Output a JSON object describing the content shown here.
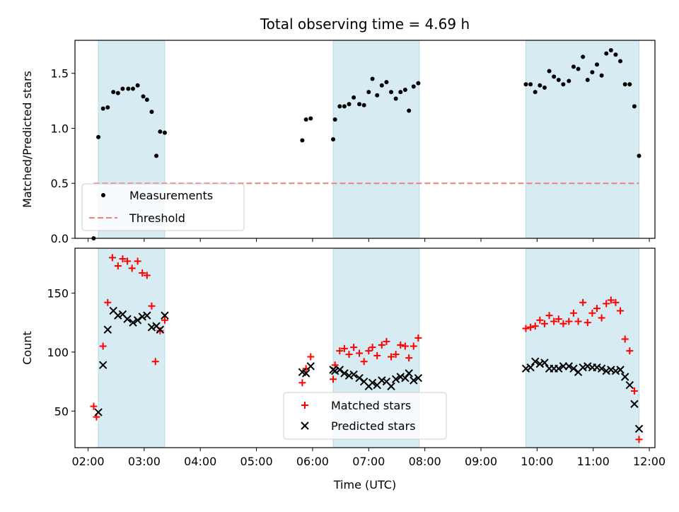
{
  "title": "Total observing time = 4.69 h",
  "chart_data": [
    {
      "type": "scatter",
      "panel": "top",
      "ylabel": "Matched/Predicted stars",
      "xlabel": "",
      "xlim": [
        "02:00",
        "12:00"
      ],
      "ylim": [
        0,
        1.8
      ],
      "yticks": [
        0.0,
        0.5,
        1.0,
        1.5
      ],
      "ytick_labels": [
        "0.0",
        "0.5",
        "1.0",
        "1.5"
      ],
      "legend_position": "lower-left",
      "shaded_intervals": [
        [
          "02:11",
          "03:22"
        ],
        [
          "06:22",
          "07:54"
        ],
        [
          "09:48",
          "11:49"
        ]
      ],
      "shade_color": "#add8e6",
      "series": [
        {
          "name": "Measurements",
          "marker": "dot",
          "color": "#000000",
          "points": [
            [
              "02:06",
              0.0
            ],
            [
              "02:11",
              0.92
            ],
            [
              "02:16",
              1.18
            ],
            [
              "02:21",
              1.19
            ],
            [
              "02:27",
              1.33
            ],
            [
              "02:32",
              1.32
            ],
            [
              "02:37",
              1.36
            ],
            [
              "02:43",
              1.36
            ],
            [
              "02:48",
              1.36
            ],
            [
              "02:53",
              1.39
            ],
            [
              "02:59",
              1.29
            ],
            [
              "03:03",
              1.26
            ],
            [
              "03:08",
              1.15
            ],
            [
              "03:13",
              0.75
            ],
            [
              "03:17",
              0.97
            ],
            [
              "03:22",
              0.96
            ],
            [
              "05:49",
              0.89
            ],
            [
              "05:53",
              1.08
            ],
            [
              "05:58",
              1.09
            ],
            [
              "06:22",
              0.9
            ],
            [
              "06:24",
              1.08
            ],
            [
              "06:29",
              1.2
            ],
            [
              "06:34",
              1.2
            ],
            [
              "06:39",
              1.22
            ],
            [
              "06:44",
              1.28
            ],
            [
              "06:50",
              1.22
            ],
            [
              "06:55",
              1.21
            ],
            [
              "07:00",
              1.33
            ],
            [
              "07:04",
              1.45
            ],
            [
              "07:09",
              1.3
            ],
            [
              "07:14",
              1.39
            ],
            [
              "07:19",
              1.42
            ],
            [
              "07:24",
              1.33
            ],
            [
              "07:29",
              1.27
            ],
            [
              "07:34",
              1.33
            ],
            [
              "07:39",
              1.35
            ],
            [
              "07:43",
              1.16
            ],
            [
              "07:48",
              1.38
            ],
            [
              "07:53",
              1.41
            ],
            [
              "09:48",
              1.4
            ],
            [
              "09:53",
              1.4
            ],
            [
              "09:58",
              1.33
            ],
            [
              "10:03",
              1.39
            ],
            [
              "10:08",
              1.37
            ],
            [
              "10:13",
              1.52
            ],
            [
              "10:18",
              1.47
            ],
            [
              "10:23",
              1.44
            ],
            [
              "10:28",
              1.4
            ],
            [
              "10:34",
              1.43
            ],
            [
              "10:39",
              1.56
            ],
            [
              "10:44",
              1.54
            ],
            [
              "10:49",
              1.65
            ],
            [
              "10:54",
              1.44
            ],
            [
              "10:59",
              1.51
            ],
            [
              "11:04",
              1.58
            ],
            [
              "11:09",
              1.48
            ],
            [
              "11:14",
              1.68
            ],
            [
              "11:19",
              1.71
            ],
            [
              "11:24",
              1.67
            ],
            [
              "11:29",
              1.61
            ],
            [
              "11:34",
              1.4
            ],
            [
              "11:39",
              1.4
            ],
            [
              "11:44",
              1.2
            ],
            [
              "11:49",
              0.75
            ]
          ]
        },
        {
          "name": "Threshold",
          "marker": "dashed-line",
          "color": "#f08080",
          "points": [
            [
              "02:06",
              0.5
            ],
            [
              "11:49",
              0.5
            ]
          ]
        }
      ]
    },
    {
      "type": "scatter",
      "panel": "bottom",
      "ylabel": "Count",
      "xlabel": "Time (UTC)",
      "xlim": [
        "01:46",
        "12:06"
      ],
      "ylim": [
        19,
        188
      ],
      "yticks": [
        50,
        100,
        150
      ],
      "ytick_labels": [
        "50",
        "100",
        "150"
      ],
      "xtick_labels": [
        "02:00",
        "03:00",
        "04:00",
        "05:00",
        "06:00",
        "07:00",
        "08:00",
        "09:00",
        "10:00",
        "11:00",
        "12:00"
      ],
      "legend_position": "lower-center",
      "shaded_intervals": [
        [
          "02:11",
          "03:22"
        ],
        [
          "06:22",
          "07:54"
        ],
        [
          "09:48",
          "11:49"
        ]
      ],
      "shade_color": "#add8e6",
      "series": [
        {
          "name": "Matched stars",
          "marker": "plus",
          "color": "#ff0000",
          "points": [
            [
              "02:06",
              54
            ],
            [
              "02:09",
              45
            ],
            [
              "02:16",
              105
            ],
            [
              "02:21",
              142
            ],
            [
              "02:26",
              180
            ],
            [
              "02:32",
              173
            ],
            [
              "02:37",
              179
            ],
            [
              "02:42",
              177
            ],
            [
              "02:47",
              171
            ],
            [
              "02:53",
              177
            ],
            [
              "02:58",
              167
            ],
            [
              "03:03",
              165
            ],
            [
              "03:08",
              139
            ],
            [
              "03:12",
              92
            ],
            [
              "03:17",
              118
            ],
            [
              "03:22",
              127
            ],
            [
              "05:49",
              74
            ],
            [
              "05:53",
              86
            ],
            [
              "05:58",
              96
            ],
            [
              "06:22",
              77
            ],
            [
              "06:24",
              89
            ],
            [
              "06:29",
              101
            ],
            [
              "06:34",
              103
            ],
            [
              "06:39",
              98
            ],
            [
              "06:44",
              104
            ],
            [
              "06:50",
              99
            ],
            [
              "06:55",
              92
            ],
            [
              "07:00",
              101
            ],
            [
              "07:04",
              104
            ],
            [
              "07:09",
              97
            ],
            [
              "07:14",
              106
            ],
            [
              "07:19",
              109
            ],
            [
              "07:24",
              96
            ],
            [
              "07:29",
              98
            ],
            [
              "07:34",
              106
            ],
            [
              "07:39",
              105
            ],
            [
              "07:43",
              95
            ],
            [
              "07:48",
              105
            ],
            [
              "07:53",
              112
            ],
            [
              "09:48",
              120
            ],
            [
              "09:53",
              121
            ],
            [
              "09:58",
              122
            ],
            [
              "10:03",
              127
            ],
            [
              "10:08",
              124
            ],
            [
              "10:13",
              131
            ],
            [
              "10:18",
              126
            ],
            [
              "10:23",
              128
            ],
            [
              "10:28",
              124
            ],
            [
              "10:34",
              126
            ],
            [
              "10:39",
              133
            ],
            [
              "10:44",
              126
            ],
            [
              "10:49",
              142
            ],
            [
              "10:54",
              125
            ],
            [
              "10:59",
              133
            ],
            [
              "11:04",
              137
            ],
            [
              "11:09",
              129
            ],
            [
              "11:14",
              141
            ],
            [
              "11:19",
              144
            ],
            [
              "11:24",
              142
            ],
            [
              "11:29",
              135
            ],
            [
              "11:34",
              111
            ],
            [
              "11:39",
              101
            ],
            [
              "11:44",
              67
            ],
            [
              "11:49",
              26
            ]
          ]
        },
        {
          "name": "Predicted stars",
          "marker": "x",
          "color": "#000000",
          "points": [
            [
              "02:11",
              49
            ],
            [
              "02:16",
              89
            ],
            [
              "02:21",
              119
            ],
            [
              "02:27",
              135
            ],
            [
              "02:32",
              131
            ],
            [
              "02:37",
              132
            ],
            [
              "02:42",
              128
            ],
            [
              "02:48",
              125
            ],
            [
              "02:53",
              127
            ],
            [
              "02:58",
              130
            ],
            [
              "03:03",
              131
            ],
            [
              "03:08",
              121
            ],
            [
              "03:13",
              122
            ],
            [
              "03:17",
              119
            ],
            [
              "03:22",
              131
            ],
            [
              "05:49",
              83
            ],
            [
              "05:53",
              82
            ],
            [
              "05:58",
              88
            ],
            [
              "06:22",
              85
            ],
            [
              "06:24",
              84
            ],
            [
              "06:29",
              85
            ],
            [
              "06:34",
              82
            ],
            [
              "06:39",
              80
            ],
            [
              "06:44",
              81
            ],
            [
              "06:50",
              78
            ],
            [
              "06:55",
              75
            ],
            [
              "07:00",
              71
            ],
            [
              "07:04",
              74
            ],
            [
              "07:09",
              72
            ],
            [
              "07:14",
              76
            ],
            [
              "07:19",
              75
            ],
            [
              "07:24",
              71
            ],
            [
              "07:29",
              77
            ],
            [
              "07:34",
              79
            ],
            [
              "07:39",
              78
            ],
            [
              "07:43",
              82
            ],
            [
              "07:48",
              76
            ],
            [
              "07:53",
              78
            ],
            [
              "09:48",
              86
            ],
            [
              "09:53",
              87
            ],
            [
              "09:58",
              92
            ],
            [
              "10:03",
              90
            ],
            [
              "10:08",
              91
            ],
            [
              "10:13",
              86
            ],
            [
              "10:18",
              86
            ],
            [
              "10:23",
              86
            ],
            [
              "10:28",
              88
            ],
            [
              "10:34",
              88
            ],
            [
              "10:39",
              86
            ],
            [
              "10:44",
              83
            ],
            [
              "10:49",
              87
            ],
            [
              "10:54",
              88
            ],
            [
              "10:59",
              87
            ],
            [
              "11:04",
              87
            ],
            [
              "11:09",
              86
            ],
            [
              "11:14",
              84
            ],
            [
              "11:19",
              85
            ],
            [
              "11:24",
              84
            ],
            [
              "11:29",
              85
            ],
            [
              "11:34",
              79
            ],
            [
              "11:39",
              72
            ],
            [
              "11:44",
              56
            ],
            [
              "11:49",
              35
            ]
          ]
        }
      ]
    }
  ]
}
